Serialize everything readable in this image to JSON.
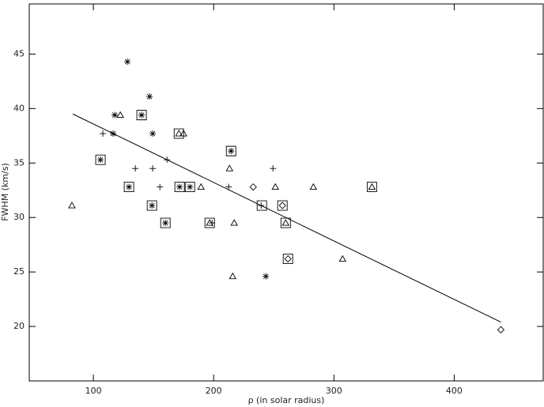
{
  "chart_data": {
    "type": "scatter",
    "x_label": "ρ (in solar radius)",
    "y_label": "FWHM (km/s)",
    "xlim": [
      46.7,
      474
    ],
    "ylim": [
      15,
      49.6
    ],
    "xticks": [
      100,
      200,
      300,
      400
    ],
    "yticks": [
      20,
      25,
      30,
      35,
      40,
      45
    ],
    "color": "#000000",
    "series": [
      {
        "marker": "asterisk",
        "x": [
          128.3,
          146.7,
          117.8,
          140.1,
          116.4,
          149.3,
          105.9,
          129.6,
          171.7,
          180.3,
          148.7,
          159.9,
          214.5,
          243.4
        ],
        "values": [
          44.3,
          41.1,
          39.4,
          39.4,
          37.7,
          37.7,
          35.3,
          32.8,
          32.8,
          32.8,
          31.1,
          29.5,
          36.1,
          24.6
        ]
      },
      {
        "marker": "plus",
        "x": [
          107.9,
          134.9,
          149.3,
          161.2,
          155.3,
          212.5,
          249.3,
          198.7,
          239.5
        ],
        "values": [
          37.7,
          34.5,
          34.5,
          35.3,
          32.8,
          32.8,
          34.5,
          29.5,
          31.1
        ]
      },
      {
        "marker": "triangle",
        "x": [
          82.2,
          122.4,
          171.1,
          175,
          213.2,
          189.5,
          196.7,
          217.1,
          215.8,
          251.3,
          259.9,
          282.9,
          307.2,
          331.6
        ],
        "values": [
          31.1,
          39.4,
          37.7,
          37.7,
          34.5,
          32.8,
          29.5,
          29.5,
          24.6,
          32.8,
          29.5,
          32.8,
          26.2,
          32.8
        ]
      },
      {
        "marker": "diamond",
        "x": [
          232.9,
          257.2,
          261.8,
          438.8
        ],
        "values": [
          32.8,
          31.1,
          26.2,
          19.7
        ]
      },
      {
        "marker": "square",
        "x": [
          105.9,
          140.1,
          129.6,
          171.1,
          171.7,
          180.3,
          148.7,
          159.9,
          196.7,
          214.5,
          240.1,
          257.2,
          259.9,
          261.8,
          331.6
        ],
        "values": [
          35.3,
          39.4,
          32.8,
          37.7,
          32.8,
          32.8,
          31.1,
          29.5,
          29.5,
          36.1,
          31.1,
          31.1,
          29.5,
          26.2,
          32.8
        ]
      },
      {
        "marker": "line",
        "x": [
          82.9,
          438.8
        ],
        "values": [
          39.5,
          20.4
        ]
      }
    ]
  }
}
